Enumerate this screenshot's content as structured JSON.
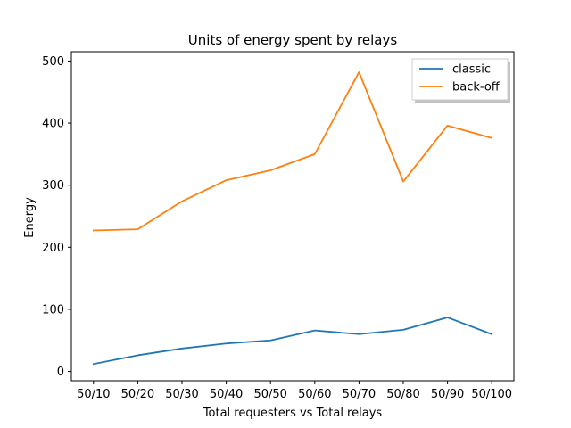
{
  "chart_data": {
    "type": "line",
    "title": "Units of energy spent by relays",
    "xlabel": "Total requesters vs Total relays",
    "ylabel": "Energy",
    "categories": [
      "50/10",
      "50/20",
      "50/30",
      "50/40",
      "50/50",
      "50/60",
      "50/70",
      "50/80",
      "50/90",
      "50/100"
    ],
    "y_ticks": [
      0,
      100,
      200,
      300,
      400,
      500
    ],
    "ylim": [
      -15,
      515
    ],
    "grid": false,
    "legend_position": "top-right",
    "series": [
      {
        "name": "classic",
        "color": "#1f77b4",
        "values": [
          12,
          26,
          37,
          45,
          50,
          66,
          60,
          67,
          87,
          60
        ]
      },
      {
        "name": "back-off",
        "color": "#ff7f0e",
        "values": [
          227,
          229,
          274,
          308,
          324,
          350,
          482,
          306,
          396,
          376
        ]
      }
    ]
  }
}
